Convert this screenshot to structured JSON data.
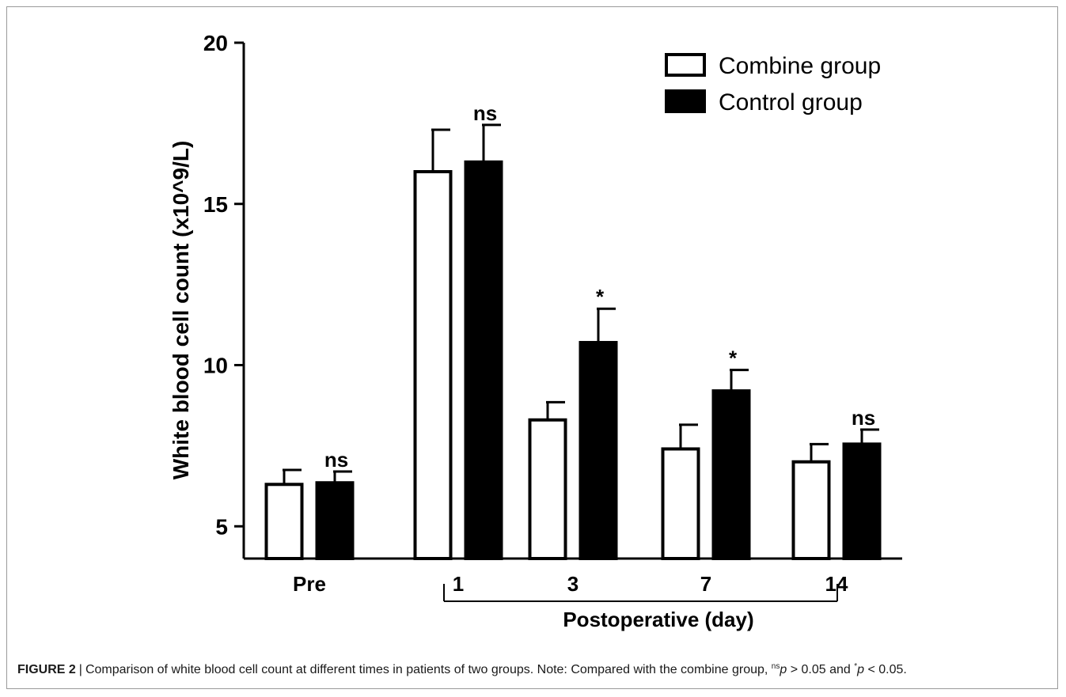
{
  "chart_data": {
    "type": "bar",
    "categories": [
      "Pre",
      "1",
      "3",
      "7",
      "14"
    ],
    "ylabel": "White blood cell count (x10^9/L)",
    "xlabel": "Postoperative (day)",
    "ylim": [
      4,
      20
    ],
    "yticks": [
      "5",
      "10",
      "15",
      "20"
    ],
    "series": [
      {
        "name": "Combine group",
        "values": [
          6.3,
          16.0,
          8.3,
          7.4,
          7.0
        ],
        "errors": [
          0.45,
          1.3,
          0.55,
          0.75,
          0.55
        ],
        "fill": "#ffffff"
      },
      {
        "name": "Control group",
        "values": [
          6.35,
          16.3,
          10.7,
          9.2,
          7.55
        ],
        "errors": [
          0.35,
          1.15,
          1.05,
          0.65,
          0.45
        ],
        "fill": "#000000"
      }
    ],
    "annotations": [
      "ns",
      "ns",
      "*",
      "*",
      "ns"
    ],
    "legend_position": "top-right",
    "grid": false
  },
  "caption": {
    "label": "FIGURE 2",
    "separator": "|",
    "text": "Comparison of white blood cell count at different times in patients of two groups. Note: Compared with the combine group,",
    "ns_sup": "ns",
    "p_var_1": "p",
    "cond_1": " > 0.05 and ",
    "star": "*",
    "p_var_2": "p",
    "cond_2": " < 0.05."
  }
}
